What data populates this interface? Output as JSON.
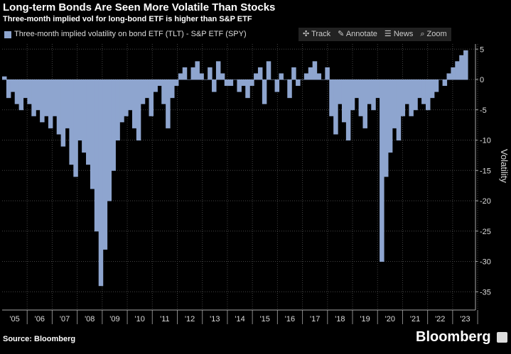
{
  "title": "Long-term Bonds Are Seen More Volatile Than Stocks",
  "subtitle": "Three-month implied vol for long-bond ETF is higher than S&P ETF",
  "toolbar": {
    "track": "Track",
    "annotate": "Annotate",
    "news": "News",
    "zoom": "Zoom"
  },
  "source": "Source: Bloomberg",
  "brand": "Bloomberg",
  "chart_data": {
    "type": "area",
    "ylabel": "Volatility",
    "legend": "Three-month implied volatility on bond ETF (TLT) - S&P ETF (SPY)",
    "legend_position": "top-left",
    "color": "#8ea5cf",
    "ylim": [
      -38,
      8
    ],
    "yticks": [
      5,
      0,
      -5,
      -10,
      -15,
      -20,
      -25,
      -30,
      -35
    ],
    "ytick_labels": [
      "5",
      "0",
      "-5",
      "-10",
      "-15",
      "-20",
      "-25",
      "-30",
      "-35"
    ],
    "xticks": [
      "'05",
      "'06",
      "'07",
      "'08",
      "'09",
      "'10",
      "'11",
      "'12",
      "'13",
      "'14",
      "'15",
      "'16",
      "'17",
      "'18",
      "'19",
      "'20",
      "'21",
      "'22",
      "'23"
    ],
    "xlim": [
      2005,
      2023.6
    ],
    "grid": true,
    "x_start": 2005,
    "x_step_years": 0.1667,
    "values": [
      0.5,
      -3,
      -2,
      -4,
      -5,
      -3,
      -4,
      -6,
      -5,
      -7,
      -6,
      -8,
      -6,
      -9,
      -11,
      -8,
      -14,
      -16,
      -10,
      -12,
      -14,
      -18,
      -25,
      -34,
      -28,
      -20,
      -15,
      -10,
      -7,
      -6,
      -5,
      -8,
      -10,
      -4,
      -3,
      -6,
      -2,
      -1,
      -4,
      -8,
      -3,
      -1,
      1,
      2,
      0,
      2,
      3,
      1,
      0,
      2,
      -2,
      3,
      1,
      -1,
      -1,
      0,
      -2,
      -1,
      -3,
      -1,
      1,
      2,
      -4,
      3,
      0,
      -2,
      1,
      0,
      -3,
      2,
      -1,
      0,
      1,
      2,
      3,
      1,
      0,
      2,
      -6,
      -9,
      -4,
      -7,
      -10,
      -5,
      -3,
      -6,
      -8,
      -4,
      -5,
      -3,
      -30,
      -16,
      -12,
      -8,
      -10,
      -6,
      -4,
      -6,
      -5,
      -3,
      -4,
      -5,
      -3,
      -2,
      0,
      -1,
      1,
      2,
      3,
      4,
      4.8
    ]
  }
}
